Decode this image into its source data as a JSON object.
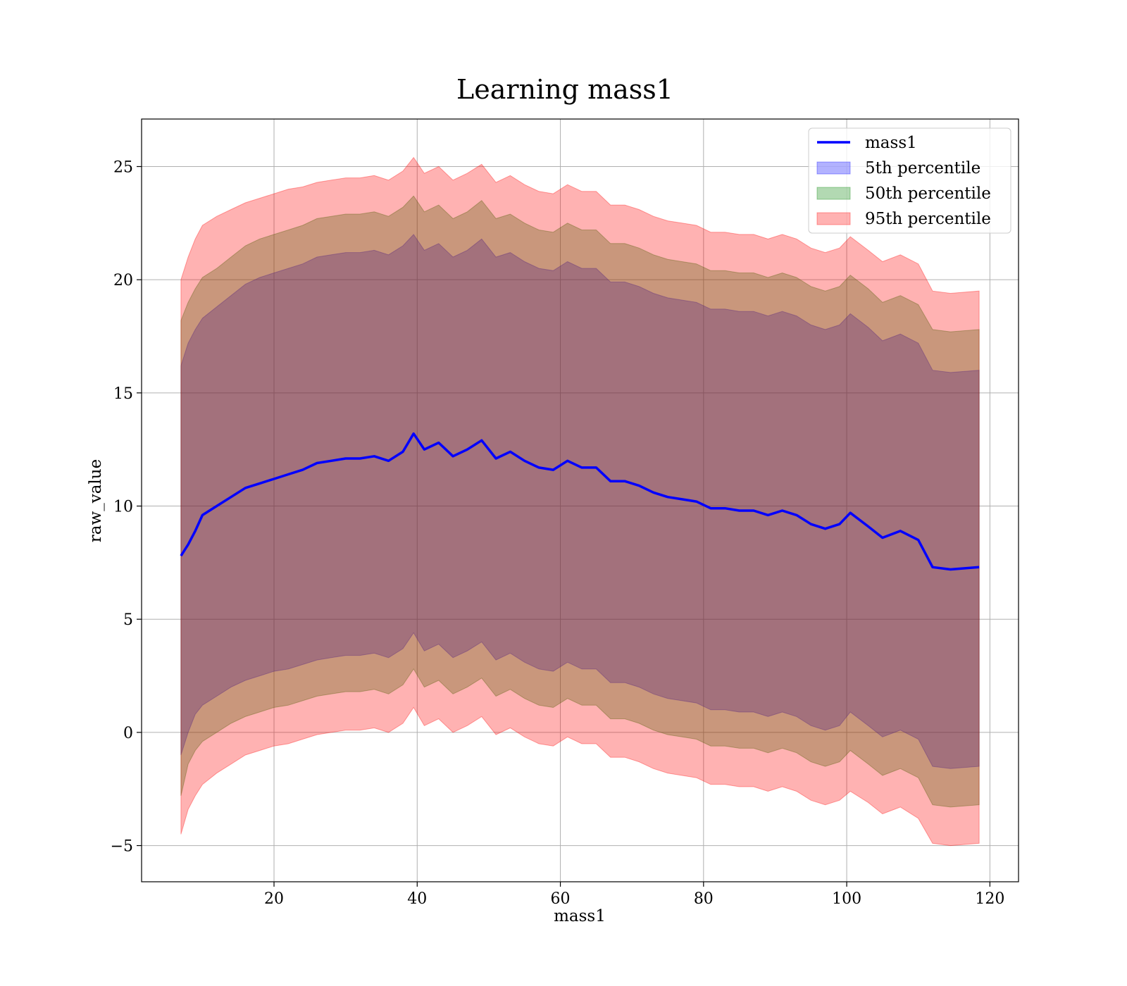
{
  "chart_data": {
    "type": "area",
    "title": "Learning mass1",
    "xlabel": "mass1",
    "ylabel": "raw_value",
    "xlim": [
      1.5,
      124.0
    ],
    "ylim": [
      -6.6,
      27.1
    ],
    "xticks": [
      20,
      40,
      60,
      80,
      100,
      120
    ],
    "yticks": [
      -5,
      0,
      5,
      10,
      15,
      20,
      25
    ],
    "ytick_labels": [
      "−5",
      "0",
      "5",
      "10",
      "15",
      "20",
      "25"
    ],
    "grid": true,
    "legend_position": "top-right",
    "legend": [
      {
        "label": "mass1",
        "kind": "line",
        "color": "#0000ff"
      },
      {
        "label": "5th percentile",
        "kind": "patch",
        "color": "#0000ff"
      },
      {
        "label": "50th percentile",
        "kind": "patch",
        "color": "#008000"
      },
      {
        "label": "95th percentile",
        "kind": "patch",
        "color": "#ff0000"
      }
    ],
    "x": [
      7,
      8,
      9,
      10,
      12,
      14,
      16,
      18,
      20,
      22,
      24,
      26,
      28,
      30,
      32,
      34,
      36,
      38,
      39.5,
      41,
      43,
      45,
      47,
      49,
      51,
      53,
      55,
      57,
      59,
      61,
      63,
      65,
      67,
      69,
      71,
      73,
      75,
      77,
      79,
      81,
      83,
      85,
      87,
      89,
      91,
      93,
      95,
      97,
      99,
      100.5,
      103,
      105,
      107.5,
      110,
      112,
      114.5,
      118.5
    ],
    "series": [
      {
        "name": "mass1",
        "color": "#0000ff",
        "values": [
          7.8,
          8.3,
          8.9,
          9.6,
          10.0,
          10.4,
          10.8,
          11.0,
          11.2,
          11.4,
          11.6,
          11.9,
          12.0,
          12.1,
          12.1,
          12.2,
          12.0,
          12.4,
          13.2,
          12.5,
          12.8,
          12.2,
          12.5,
          12.9,
          12.1,
          12.4,
          12.0,
          11.7,
          11.6,
          12.0,
          11.7,
          11.7,
          11.1,
          11.1,
          10.9,
          10.6,
          10.4,
          10.3,
          10.2,
          9.9,
          9.9,
          9.8,
          9.8,
          9.6,
          9.8,
          9.6,
          9.2,
          9.0,
          9.2,
          9.7,
          9.1,
          8.6,
          8.9,
          8.5,
          7.3,
          7.2,
          7.3
        ]
      },
      {
        "name": "5th percentile",
        "color": "#0000ff",
        "lower": [
          -1.0,
          0.0,
          0.8,
          1.2,
          1.6,
          2.0,
          2.3,
          2.5,
          2.7,
          2.8,
          3.0,
          3.2,
          3.3,
          3.4,
          3.4,
          3.5,
          3.3,
          3.7,
          4.4,
          3.6,
          3.9,
          3.3,
          3.6,
          4.0,
          3.2,
          3.5,
          3.1,
          2.8,
          2.7,
          3.1,
          2.8,
          2.8,
          2.2,
          2.2,
          2.0,
          1.7,
          1.5,
          1.4,
          1.3,
          1.0,
          1.0,
          0.9,
          0.9,
          0.7,
          0.9,
          0.7,
          0.3,
          0.1,
          0.3,
          0.9,
          0.3,
          -0.2,
          0.1,
          -0.3,
          -1.5,
          -1.6,
          -1.5
        ],
        "upper": [
          16.2,
          17.2,
          17.8,
          18.3,
          18.8,
          19.3,
          19.8,
          20.1,
          20.3,
          20.5,
          20.7,
          21.0,
          21.1,
          21.2,
          21.2,
          21.3,
          21.1,
          21.5,
          22.0,
          21.3,
          21.6,
          21.0,
          21.3,
          21.8,
          21.0,
          21.2,
          20.8,
          20.5,
          20.4,
          20.8,
          20.5,
          20.5,
          19.9,
          19.9,
          19.7,
          19.4,
          19.2,
          19.1,
          19.0,
          18.7,
          18.7,
          18.6,
          18.6,
          18.4,
          18.6,
          18.4,
          18.0,
          17.8,
          18.0,
          18.5,
          17.9,
          17.3,
          17.6,
          17.2,
          16.0,
          15.9,
          16.0
        ]
      },
      {
        "name": "50th percentile",
        "color": "#008000",
        "lower": [
          -2.8,
          -1.4,
          -0.8,
          -0.4,
          0.0,
          0.4,
          0.7,
          0.9,
          1.1,
          1.2,
          1.4,
          1.6,
          1.7,
          1.8,
          1.8,
          1.9,
          1.7,
          2.1,
          2.8,
          2.0,
          2.3,
          1.7,
          2.0,
          2.4,
          1.6,
          1.9,
          1.5,
          1.2,
          1.1,
          1.5,
          1.2,
          1.2,
          0.6,
          0.6,
          0.4,
          0.1,
          -0.1,
          -0.2,
          -0.3,
          -0.6,
          -0.6,
          -0.7,
          -0.7,
          -0.9,
          -0.7,
          -0.9,
          -1.3,
          -1.5,
          -1.3,
          -0.8,
          -1.4,
          -1.9,
          -1.6,
          -2.0,
          -3.2,
          -3.3,
          -3.2
        ],
        "upper": [
          18.2,
          19.0,
          19.6,
          20.1,
          20.5,
          21.0,
          21.5,
          21.8,
          22.0,
          22.2,
          22.4,
          22.7,
          22.8,
          22.9,
          22.9,
          23.0,
          22.8,
          23.2,
          23.7,
          23.0,
          23.3,
          22.7,
          23.0,
          23.5,
          22.7,
          22.9,
          22.5,
          22.2,
          22.1,
          22.5,
          22.2,
          22.2,
          21.6,
          21.6,
          21.4,
          21.1,
          20.9,
          20.8,
          20.7,
          20.4,
          20.4,
          20.3,
          20.3,
          20.1,
          20.3,
          20.1,
          19.7,
          19.5,
          19.7,
          20.2,
          19.6,
          19.0,
          19.3,
          18.9,
          17.8,
          17.7,
          17.8
        ]
      },
      {
        "name": "95th percentile",
        "color": "#ff0000",
        "lower": [
          -4.5,
          -3.4,
          -2.8,
          -2.3,
          -1.8,
          -1.4,
          -1.0,
          -0.8,
          -0.6,
          -0.5,
          -0.3,
          -0.1,
          0.0,
          0.1,
          0.1,
          0.2,
          0.0,
          0.4,
          1.1,
          0.3,
          0.6,
          0.0,
          0.3,
          0.7,
          -0.1,
          0.2,
          -0.2,
          -0.5,
          -0.6,
          -0.2,
          -0.5,
          -0.5,
          -1.1,
          -1.1,
          -1.3,
          -1.6,
          -1.8,
          -1.9,
          -2.0,
          -2.3,
          -2.3,
          -2.4,
          -2.4,
          -2.6,
          -2.4,
          -2.6,
          -3.0,
          -3.2,
          -3.0,
          -2.6,
          -3.1,
          -3.6,
          -3.3,
          -3.8,
          -4.9,
          -5.0,
          -4.9
        ],
        "upper": [
          20.0,
          21.0,
          21.8,
          22.4,
          22.8,
          23.1,
          23.4,
          23.6,
          23.8,
          24.0,
          24.1,
          24.3,
          24.4,
          24.5,
          24.5,
          24.6,
          24.4,
          24.8,
          25.4,
          24.7,
          25.0,
          24.4,
          24.7,
          25.1,
          24.3,
          24.6,
          24.2,
          23.9,
          23.8,
          24.2,
          23.9,
          23.9,
          23.3,
          23.3,
          23.1,
          22.8,
          22.6,
          22.5,
          22.4,
          22.1,
          22.1,
          22.0,
          22.0,
          21.8,
          22.0,
          21.8,
          21.4,
          21.2,
          21.4,
          21.9,
          21.3,
          20.8,
          21.1,
          20.7,
          19.5,
          19.4,
          19.5
        ]
      }
    ]
  }
}
